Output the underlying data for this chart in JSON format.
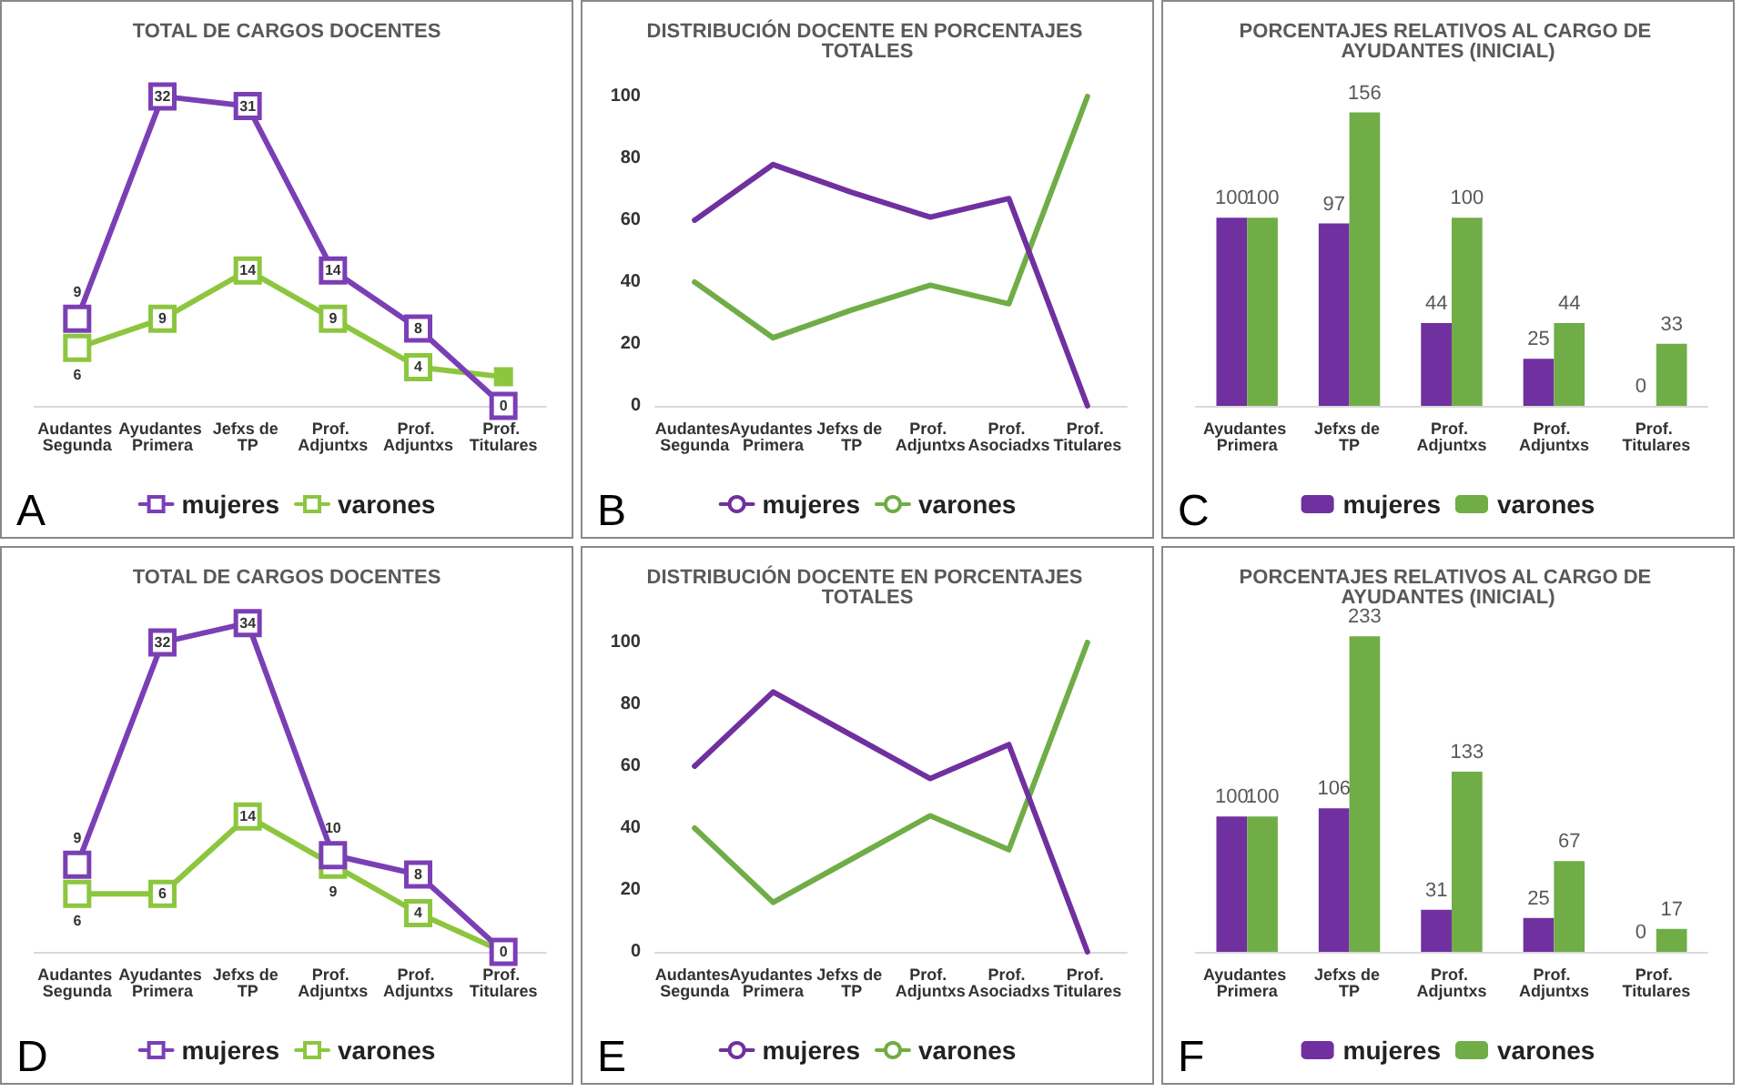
{
  "chart_data": [
    {
      "type": "line",
      "title": "TOTAL DE CARGOS DOCENTES",
      "categories": [
        "Audantes Segunda",
        "Ayudantes Primera",
        "Jefxs de TP",
        "Prof. Adjuntxs",
        "Prof. Adjuntxs",
        "Prof. Titulares"
      ],
      "marker": "square",
      "legend": "bottom",
      "annotations": [
        "A"
      ],
      "series": [
        {
          "name": "mujeres",
          "color": "#7b3fb5",
          "values": [
            9,
            32,
            31,
            14,
            8,
            0
          ],
          "value_labels": [
            "9",
            "32",
            "31",
            "14",
            "8",
            "0"
          ]
        },
        {
          "name": "varones",
          "color": "#8cc63f",
          "values": [
            6,
            9,
            14,
            9,
            4,
            3
          ],
          "value_labels": [
            "6",
            "9",
            "14",
            "9",
            "4",
            null
          ]
        }
      ]
    },
    {
      "type": "line",
      "title": "DISTRIBUCIÓN DOCENTE EN PORCENTAJES TOTALES",
      "categories": [
        "Audantes Segunda",
        "Ayudantes Primera",
        "Jefxs de TP",
        "Prof. Adjuntxs",
        "Prof. Asociadxs",
        "Prof. Titulares"
      ],
      "ylim": [
        0,
        100
      ],
      "yticks": [
        0,
        20,
        40,
        60,
        80,
        100
      ],
      "legend": "bottom",
      "annotations": [
        "B"
      ],
      "series": [
        {
          "name": "mujeres",
          "color": "#7030a0",
          "values": [
            60,
            78,
            69,
            61,
            67,
            0
          ]
        },
        {
          "name": "varones",
          "color": "#70ad47",
          "values": [
            40,
            22,
            31,
            39,
            33,
            100
          ]
        }
      ]
    },
    {
      "type": "bar",
      "title": "PORCENTAJES RELATIVOS AL CARGO DE AYUDANTES (INICIAL)",
      "categories": [
        "Ayudantes Primera",
        "Jefxs de TP",
        "Prof. Adjuntxs",
        "Prof. Adjuntxs",
        "Prof. Titulares"
      ],
      "data_labels": true,
      "legend": "bottom",
      "annotations": [
        "C"
      ],
      "series": [
        {
          "name": "mujeres",
          "color": "#7030a0",
          "values": [
            100,
            97,
            44,
            25,
            0
          ]
        },
        {
          "name": "varones",
          "color": "#70ad47",
          "values": [
            100,
            156,
            100,
            44,
            33
          ]
        }
      ]
    },
    {
      "type": "line",
      "title": "TOTAL DE CARGOS DOCENTES",
      "categories": [
        "Audantes Segunda",
        "Ayudantes Primera",
        "Jefxs de TP",
        "Prof. Adjuntxs",
        "Prof. Adjuntxs",
        "Prof. Titulares"
      ],
      "marker": "square",
      "legend": "bottom",
      "annotations": [
        "D"
      ],
      "series": [
        {
          "name": "mujeres",
          "color": "#7b3fb5",
          "values": [
            9,
            32,
            34,
            10,
            8,
            0
          ],
          "value_labels": [
            "9",
            "32",
            "34",
            "10",
            "8",
            "0"
          ]
        },
        {
          "name": "varones",
          "color": "#8cc63f",
          "values": [
            6,
            6,
            14,
            9,
            4,
            0
          ],
          "value_labels": [
            "6",
            "6",
            "14",
            "9",
            "4",
            null
          ]
        }
      ]
    },
    {
      "type": "line",
      "title": "DISTRIBUCIÓN DOCENTE EN PORCENTAJES TOTALES",
      "categories": [
        "Audantes Segunda",
        "Ayudantes Primera",
        "Jefxs de TP",
        "Prof. Adjuntxs",
        "Prof. Asociadxs",
        "Prof. Titulares"
      ],
      "ylim": [
        0,
        100
      ],
      "yticks": [
        0,
        20,
        40,
        60,
        80,
        100
      ],
      "legend": "bottom",
      "annotations": [
        "E"
      ],
      "series": [
        {
          "name": "mujeres",
          "color": "#7030a0",
          "values": [
            60,
            84,
            70,
            56,
            67,
            0
          ]
        },
        {
          "name": "varones",
          "color": "#70ad47",
          "values": [
            40,
            16,
            30,
            44,
            33,
            100
          ]
        }
      ]
    },
    {
      "type": "bar",
      "title": "PORCENTAJES RELATIVOS AL CARGO DE AYUDANTES (INICIAL)",
      "categories": [
        "Ayudantes Primera",
        "Jefxs de TP",
        "Prof. Adjuntxs",
        "Prof. Adjuntxs",
        "Prof. Titulares"
      ],
      "data_labels": true,
      "legend": "bottom",
      "annotations": [
        "F"
      ],
      "series": [
        {
          "name": "mujeres",
          "color": "#7030a0",
          "values": [
            100,
            106,
            31,
            25,
            0
          ]
        },
        {
          "name": "varones",
          "color": "#70ad47",
          "values": [
            100,
            233,
            133,
            67,
            17
          ]
        }
      ]
    }
  ]
}
